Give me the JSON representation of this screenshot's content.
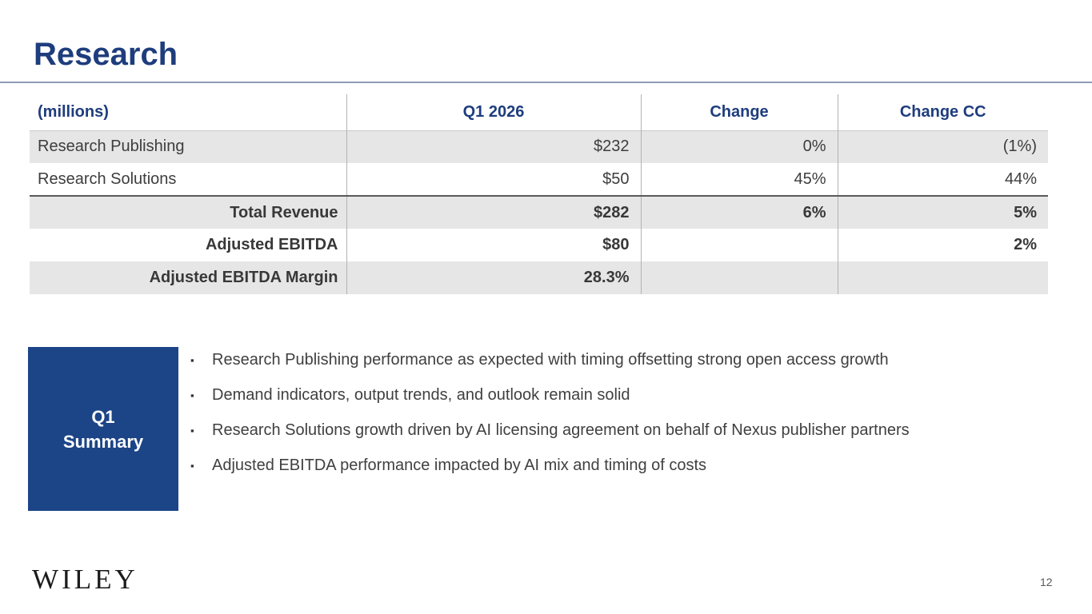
{
  "header": {
    "title": "Research"
  },
  "table": {
    "unit_label": "(millions)",
    "columns": [
      "Q1 2026",
      "Change",
      "Change CC"
    ],
    "rows": [
      {
        "label": "Research Publishing",
        "q1_2026": "$232",
        "change": "0%",
        "change_cc": "(1%)",
        "bold": false,
        "shaded": true,
        "rule_above": false
      },
      {
        "label": "Research Solutions",
        "q1_2026": "$50",
        "change": "45%",
        "change_cc": "44%",
        "bold": false,
        "shaded": false,
        "rule_above": false
      },
      {
        "label": "Total Revenue",
        "q1_2026": "$282",
        "change": "6%",
        "change_cc": "5%",
        "bold": true,
        "shaded": true,
        "rule_above": true
      },
      {
        "label": "Adjusted EBITDA",
        "q1_2026": "$80",
        "change": "",
        "change_cc": "2%",
        "bold": true,
        "shaded": false,
        "rule_above": false
      },
      {
        "label": "Adjusted EBITDA Margin",
        "q1_2026": "28.3%",
        "change": "",
        "change_cc": "",
        "bold": true,
        "shaded": true,
        "rule_above": false
      }
    ]
  },
  "summary": {
    "heading": "Q1\nSummary",
    "bullet_glyph": "▪",
    "bullets": [
      "Research Publishing performance as expected with timing offsetting strong open access growth",
      "Demand indicators, output trends, and outlook remain solid",
      "Research Solutions growth driven by AI licensing agreement on behalf of Nexus publisher partners",
      "Adjusted EBITDA performance impacted by AI mix and timing of costs"
    ]
  },
  "footer": {
    "logo": "WILEY",
    "page_number": "12"
  },
  "colors": {
    "brand_navy": "#1e3d7d",
    "summary_box_blue": "#1c4587",
    "row_shade_gray": "#e6e6e6",
    "table_divider_gray": "#b3b3b3",
    "subtotal_rule_gray": "#595959",
    "title_rule_gray": "#8d9cb3",
    "body_text_gray": "#404040"
  }
}
